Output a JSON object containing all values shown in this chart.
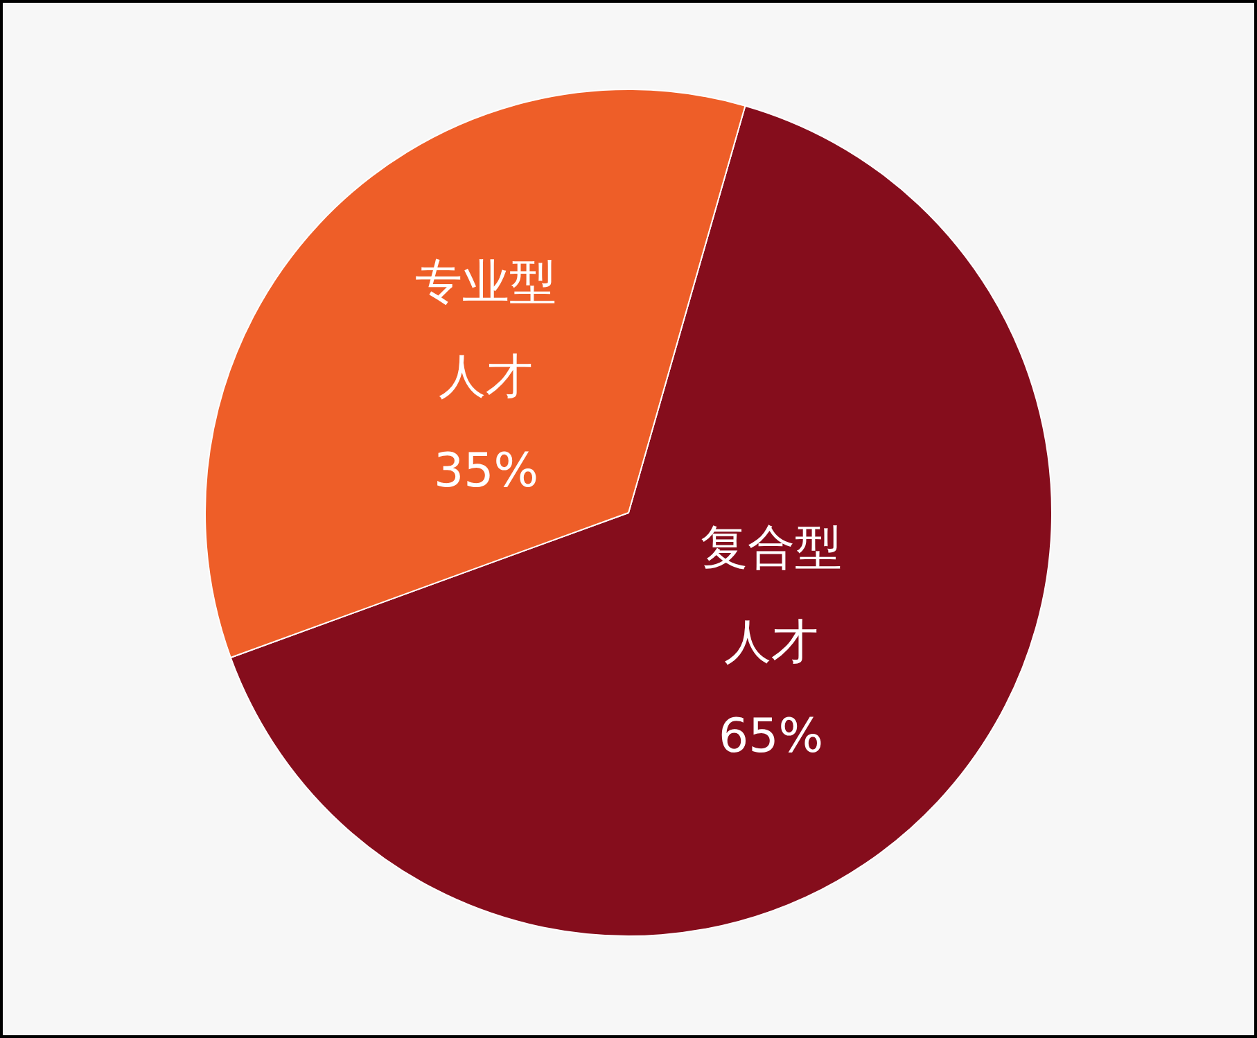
{
  "chart_data": {
    "type": "pie",
    "categories": [
      "复合型人才",
      "专业型人才"
    ],
    "values": [
      65,
      35
    ],
    "colors": [
      "#850d1c",
      "#ee5e28"
    ],
    "value_labels": [
      "65%",
      "35%"
    ],
    "legend": false
  }
}
